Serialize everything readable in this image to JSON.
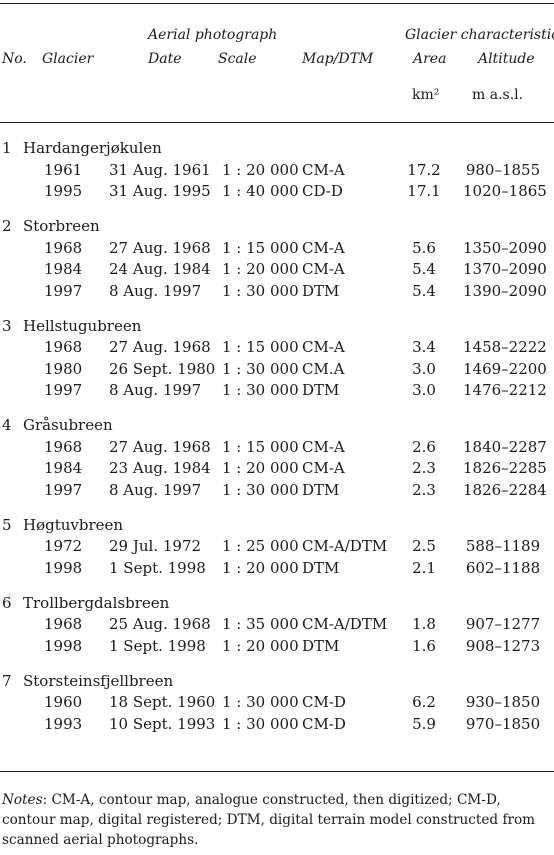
{
  "header": {
    "no": "No.",
    "glacier": "Glacier",
    "aerial_group": "Aerial photograph",
    "date": "Date",
    "scale": "Scale",
    "map_dtm": "Map/DTM",
    "characteristics_group": "Glacier characteristics",
    "area": "Area",
    "altitude": "Altitude",
    "area_unit": "km²",
    "altitude_unit": "m a.s.l."
  },
  "glaciers": [
    {
      "no": "1",
      "name": "Hardangerjøkulen",
      "rows": [
        {
          "year": "1961",
          "date": "31 Aug. 1961",
          "scale": "1 : 20 000",
          "map": "CM-A",
          "area": "17.2",
          "altitude": "980–1855"
        },
        {
          "year": "1995",
          "date": "31 Aug. 1995",
          "scale": "1 : 40 000",
          "map": "CD-D",
          "area": "17.1",
          "altitude": "1020–1865"
        }
      ]
    },
    {
      "no": "2",
      "name": "Storbreen",
      "rows": [
        {
          "year": "1968",
          "date": "27 Aug. 1968",
          "scale": "1 : 15 000",
          "map": "CM-A",
          "area": "5.6",
          "altitude": "1350–2090"
        },
        {
          "year": "1984",
          "date": "24 Aug. 1984",
          "scale": "1 : 20 000",
          "map": "CM-A",
          "area": "5.4",
          "altitude": "1370–2090"
        },
        {
          "year": "1997",
          "date": "8 Aug. 1997",
          "scale": "1 : 30 000",
          "map": "DTM",
          "area": "5.4",
          "altitude": "1390–2090"
        }
      ]
    },
    {
      "no": "3",
      "name": "Hellstugubreen",
      "rows": [
        {
          "year": "1968",
          "date": "27 Aug. 1968",
          "scale": "1 : 15 000",
          "map": "CM-A",
          "area": "3.4",
          "altitude": "1458–2222"
        },
        {
          "year": "1980",
          "date": "26 Sept. 1980",
          "scale": "1 : 30 000",
          "map": "CM.A",
          "area": "3.0",
          "altitude": "1469–2200"
        },
        {
          "year": "1997",
          "date": "8 Aug. 1997",
          "scale": "1 : 30 000",
          "map": "DTM",
          "area": "3.0",
          "altitude": "1476–2212"
        }
      ]
    },
    {
      "no": "4",
      "name": "Gråsubreen",
      "rows": [
        {
          "year": "1968",
          "date": "27 Aug. 1968",
          "scale": "1 : 15 000",
          "map": "CM-A",
          "area": "2.6",
          "altitude": "1840–2287"
        },
        {
          "year": "1984",
          "date": "23 Aug. 1984",
          "scale": "1 : 20 000",
          "map": "CM-A",
          "area": "2.3",
          "altitude": "1826–2285"
        },
        {
          "year": "1997",
          "date": "8 Aug. 1997",
          "scale": "1 : 30 000",
          "map": "DTM",
          "area": "2.3",
          "altitude": "1826–2284"
        }
      ]
    },
    {
      "no": "5",
      "name": "Høgtuvbreen",
      "rows": [
        {
          "year": "1972",
          "date": "29 Jul. 1972",
          "scale": "1 : 25 000",
          "map": "CM-A/DTM",
          "area": "2.5",
          "altitude": "588–1189"
        },
        {
          "year": "1998",
          "date": "1 Sept. 1998",
          "scale": "1 : 20 000",
          "map": "DTM",
          "area": "2.1",
          "altitude": "602–1188"
        }
      ]
    },
    {
      "no": "6",
      "name": "Trollbergdalsbreen",
      "rows": [
        {
          "year": "1968",
          "date": "25 Aug. 1968",
          "scale": "1 : 35 000",
          "map": "CM-A/DTM",
          "area": "1.8",
          "altitude": "907–1277"
        },
        {
          "year": "1998",
          "date": "1 Sept. 1998",
          "scale": "1 : 20 000",
          "map": "DTM",
          "area": "1.6",
          "altitude": "908–1273"
        }
      ]
    },
    {
      "no": "7",
      "name": "Storsteinsfjellbreen",
      "rows": [
        {
          "year": "1960",
          "date": "18 Sept. 1960",
          "scale": "1 : 30 000",
          "map": "CM-D",
          "area": "6.2",
          "altitude": "930–1850"
        },
        {
          "year": "1993",
          "date": "10 Sept. 1993",
          "scale": "1 : 30 000",
          "map": "CM-D",
          "area": "5.9",
          "altitude": "970–1850"
        }
      ]
    }
  ],
  "notes": {
    "label": "Notes",
    "text": ": CM-A, contour map, analogue constructed, then digitized; CM-D, contour map, digital registered; DTM, digital terrain model constructed from scanned aerial photographs."
  }
}
